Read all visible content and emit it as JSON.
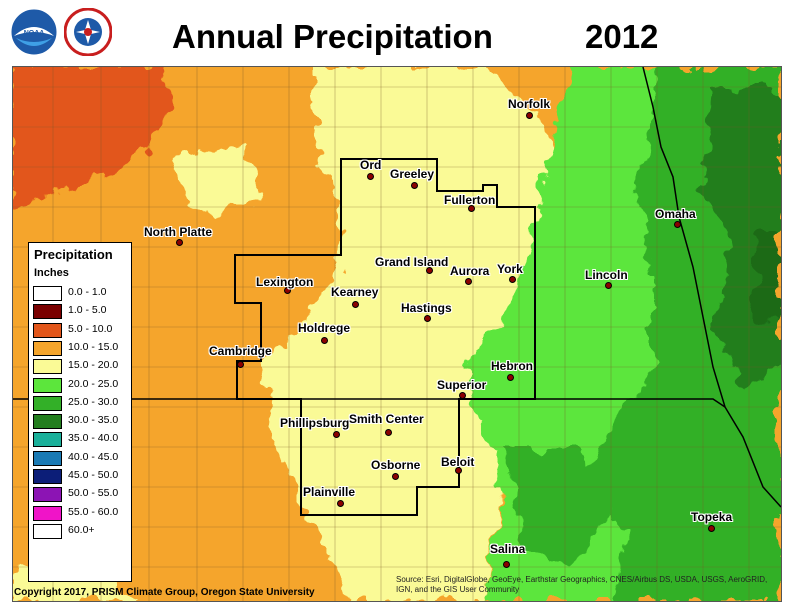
{
  "header": {
    "title": "Annual Precipitation",
    "year": "2012",
    "logos": [
      {
        "name": "noaa-logo-icon",
        "text": "NOAA"
      },
      {
        "name": "nws-logo-icon",
        "text": "NATIONAL WEATHER SERVICE"
      }
    ]
  },
  "legend": {
    "title": "Precipitation",
    "units": "Inches",
    "items": [
      {
        "label": "0.0 - 1.0",
        "color": "#ffffff"
      },
      {
        "label": "1.0 - 5.0",
        "color": "#7a0000"
      },
      {
        "label": "5.0 - 10.0",
        "color": "#e2561a"
      },
      {
        "label": "10.0 - 15.0",
        "color": "#f5a52c"
      },
      {
        "label": "15.0 - 20.0",
        "color": "#fafa96"
      },
      {
        "label": "20.0 - 25.0",
        "color": "#5ce63c"
      },
      {
        "label": "25.0 - 30.0",
        "color": "#33b028"
      },
      {
        "label": "30.0 - 35.0",
        "color": "#237e1e"
      },
      {
        "label": "35.0 - 40.0",
        "color": "#1ab09a"
      },
      {
        "label": "40.0 - 45.0",
        "color": "#1a7ab4"
      },
      {
        "label": "45.0 - 50.0",
        "color": "#0c1e78"
      },
      {
        "label": "50.0 - 55.0",
        "color": "#8c14b4"
      },
      {
        "label": "55.0 - 60.0",
        "color": "#f014c8"
      },
      {
        "label": "60.0+",
        "color": "#ffffff"
      }
    ]
  },
  "cities": [
    {
      "name": "Norfolk"
    },
    {
      "name": "Ord"
    },
    {
      "name": "Greeley"
    },
    {
      "name": "Fullerton"
    },
    {
      "name": "Omaha"
    },
    {
      "name": "North Platte"
    },
    {
      "name": "Grand Island"
    },
    {
      "name": "Aurora"
    },
    {
      "name": "York"
    },
    {
      "name": "Lincoln"
    },
    {
      "name": "Lexington"
    },
    {
      "name": "Kearney"
    },
    {
      "name": "Hastings"
    },
    {
      "name": "Holdrege"
    },
    {
      "name": "Cambridge"
    },
    {
      "name": "Hebron"
    },
    {
      "name": "Superior"
    },
    {
      "name": "Phillipsburg"
    },
    {
      "name": "Smith Center"
    },
    {
      "name": "Osborne"
    },
    {
      "name": "Beloit"
    },
    {
      "name": "Plainville"
    },
    {
      "name": "Topeka"
    },
    {
      "name": "Salina"
    }
  ],
  "credits": {
    "left": "Copyright 2017, PRISM Climate Group, Oregon State University",
    "right": "Source: Esri, DigitalGlobe, GeoEye, Earthstar Geographics, CNES/Airbus DS, USDA, USGS, AeroGRID, IGN, and the GIS User Community"
  }
}
